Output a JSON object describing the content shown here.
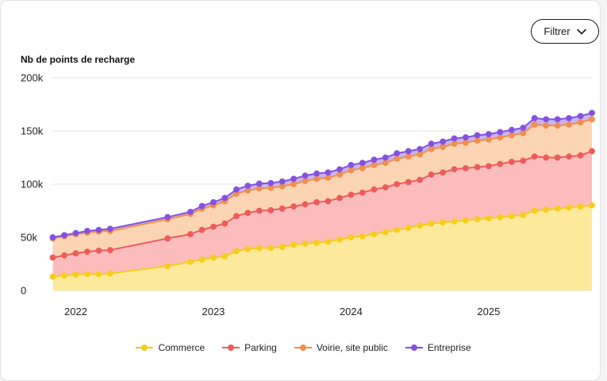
{
  "filter": {
    "label": "Filtrer",
    "icon": "chevron-down-icon"
  },
  "chart_data": {
    "type": "area",
    "stacked": true,
    "ylabel": "Nb de points de recharge",
    "ylim": [
      0,
      200000
    ],
    "yticks": [
      0,
      50000,
      100000,
      150000,
      200000
    ],
    "ytick_labels": [
      "0",
      "50k",
      "100k",
      "150k",
      "200k"
    ],
    "x_ticks": [
      2022,
      2023,
      2024,
      2025
    ],
    "x_tick_labels": [
      "2022",
      "2023",
      "2024",
      "2025"
    ],
    "xlim": [
      2021.83,
      2025.75
    ],
    "grid": true,
    "legend_position": "bottom",
    "x": [
      2021.833,
      2021.917,
      2022.0,
      2022.083,
      2022.167,
      2022.25,
      2022.667,
      2022.833,
      2022.917,
      2023.0,
      2023.083,
      2023.167,
      2023.25,
      2023.333,
      2023.417,
      2023.5,
      2023.583,
      2023.667,
      2023.75,
      2023.833,
      2023.917,
      2024.0,
      2024.083,
      2024.167,
      2024.25,
      2024.333,
      2024.417,
      2024.5,
      2024.583,
      2024.667,
      2024.75,
      2024.833,
      2024.917,
      2025.0,
      2025.083,
      2025.167,
      2025.25,
      2025.333,
      2025.417,
      2025.5,
      2025.583,
      2025.667,
      2025.75
    ],
    "series": [
      {
        "name": "Commerce",
        "color": "#f5cd1e",
        "fill": "#fde99b",
        "values": [
          13000,
          14000,
          15000,
          15500,
          15500,
          16000,
          23000,
          27000,
          29000,
          31000,
          32000,
          37000,
          39000,
          40000,
          40000,
          41000,
          43000,
          44000,
          45000,
          46000,
          48000,
          50000,
          51000,
          53000,
          55000,
          57000,
          59000,
          61000,
          63000,
          64000,
          65000,
          66000,
          67000,
          68000,
          69000,
          70000,
          71000,
          75000,
          76000,
          77000,
          78000,
          79000,
          80000
        ]
      },
      {
        "name": "Parking",
        "color": "#ec5c5c",
        "fill": "#fcbcbc",
        "values": [
          18000,
          19000,
          20000,
          21000,
          22000,
          22000,
          26000,
          26000,
          28000,
          29000,
          31000,
          33000,
          34000,
          35000,
          35500,
          36000,
          36000,
          37000,
          38000,
          38000,
          39000,
          40000,
          41000,
          42000,
          42000,
          43000,
          43000,
          43000,
          46000,
          47000,
          49000,
          49000,
          49000,
          49000,
          50000,
          51000,
          51000,
          51000,
          49000,
          48000,
          48000,
          48000,
          51000
        ]
      },
      {
        "name": "Voirie, site public",
        "color": "#f08f4e",
        "fill": "#fbd4b4",
        "values": [
          18000,
          18000,
          18000,
          18000,
          18000,
          18000,
          18000,
          19000,
          20000,
          20000,
          21000,
          21000,
          21000,
          21000,
          21000,
          21000,
          21000,
          22000,
          22000,
          22000,
          22000,
          23000,
          23000,
          23000,
          23000,
          24000,
          24000,
          24000,
          24000,
          24000,
          24000,
          24000,
          25000,
          25000,
          25000,
          25000,
          26000,
          30000,
          30000,
          30000,
          30000,
          31000,
          30000
        ]
      },
      {
        "name": "Entreprise",
        "color": "#8451e0",
        "fill": "#c9b3f0",
        "values": [
          1000,
          1000,
          1000,
          1500,
          1500,
          2000,
          2000,
          2000,
          2500,
          3000,
          3000,
          4000,
          4500,
          4500,
          4500,
          4500,
          5000,
          5000,
          5000,
          5000,
          5000,
          5000,
          5000,
          5000,
          5000,
          5000,
          5000,
          5000,
          5000,
          5000,
          5000,
          5000,
          5000,
          5000,
          5000,
          5000,
          5000,
          6000,
          6000,
          6000,
          6000,
          6000,
          6000
        ]
      }
    ]
  }
}
